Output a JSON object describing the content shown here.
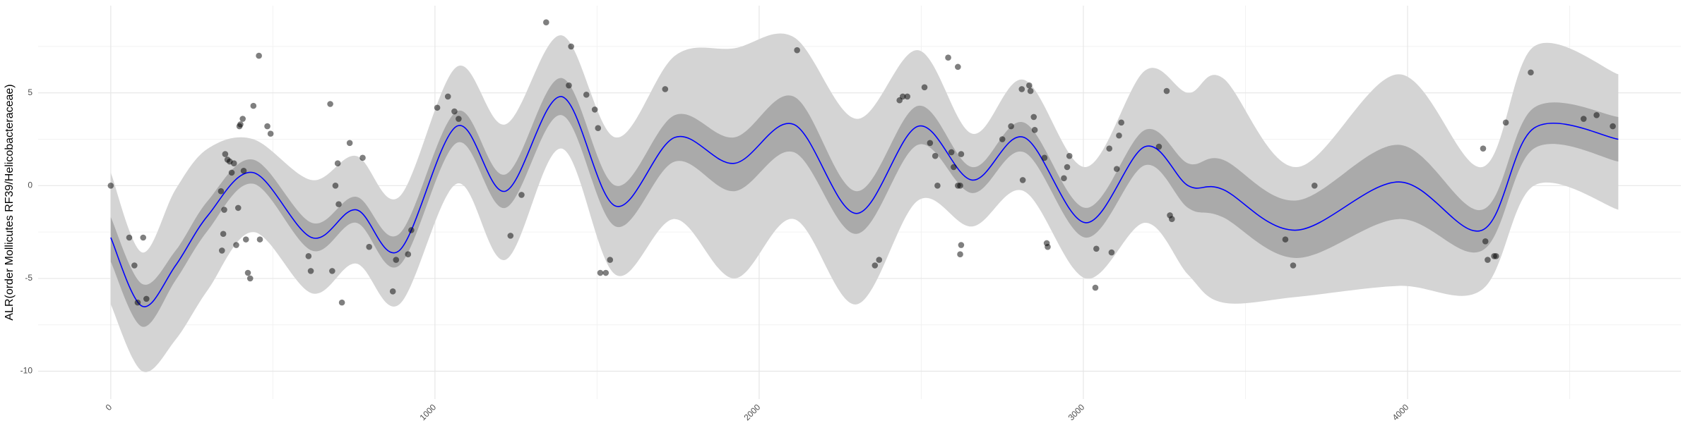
{
  "chart_data": {
    "type": "scatter",
    "y_label": "ALR(order Mollicutes RF39/Helicobacteraceae)",
    "xlim": [
      -224,
      4843
    ],
    "ylim": [
      -11.5,
      9.7
    ],
    "xticks": [
      0,
      1000,
      2000,
      3000,
      4000
    ],
    "yticks": [
      -10,
      -5,
      0,
      5
    ],
    "grid": true,
    "minor_grid": true,
    "points": {
      "color": "#000000",
      "x": [
        0,
        57,
        73,
        83,
        100,
        110,
        340,
        343,
        347,
        350,
        353,
        360,
        367,
        373,
        380,
        387,
        393,
        397,
        400,
        407,
        410,
        417,
        423,
        430,
        440,
        457,
        460,
        483,
        493,
        610,
        617,
        677,
        683,
        693,
        700,
        703,
        713,
        737,
        777,
        797,
        870,
        880,
        917,
        927,
        1007,
        1040,
        1060,
        1073,
        1233,
        1267,
        1343,
        1413,
        1420,
        1467,
        1493,
        1503,
        1510,
        1527,
        1540,
        1710,
        2117,
        2357,
        2370,
        2433,
        2443,
        2457,
        2510,
        2527,
        2543,
        2550,
        2583,
        2593,
        2600,
        2613,
        2613,
        2620,
        2623,
        2623,
        2620,
        2750,
        2777,
        2810,
        2813,
        2833,
        2837,
        2847,
        2850,
        2880,
        2887,
        2890,
        2950,
        2957,
        2940,
        3040,
        3037,
        3080,
        3087,
        3103,
        3110,
        3117,
        3233,
        3257,
        3267,
        3273,
        3623,
        3647,
        3713,
        4233,
        4240,
        4247,
        4267,
        4273,
        4303,
        4380,
        4543,
        4583,
        4633
      ],
      "y": [
        0.0,
        -2.8,
        -4.3,
        -6.3,
        -2.8,
        -6.1,
        -0.3,
        -3.5,
        -2.6,
        -1.3,
        1.7,
        1.4,
        1.3,
        0.7,
        1.2,
        -3.2,
        -1.2,
        3.2,
        3.3,
        3.6,
        0.8,
        -2.9,
        -4.7,
        -5.0,
        4.3,
        7.0,
        -2.9,
        3.2,
        2.8,
        -3.8,
        -4.6,
        4.4,
        -4.6,
        0.0,
        1.2,
        -1.0,
        -6.3,
        2.3,
        1.5,
        -3.3,
        -5.7,
        -4.0,
        -3.7,
        -2.4,
        4.2,
        4.8,
        4.0,
        3.6,
        -2.7,
        -0.5,
        8.8,
        5.4,
        7.5,
        4.9,
        4.1,
        3.1,
        -4.7,
        -4.7,
        -4.0,
        5.2,
        7.3,
        -4.3,
        -4.0,
        4.6,
        4.8,
        4.8,
        5.3,
        2.3,
        1.6,
        0.0,
        6.9,
        1.8,
        1.0,
        6.4,
        0.0,
        0.0,
        1.7,
        -3.2,
        -3.7,
        2.5,
        3.2,
        5.2,
        0.3,
        5.4,
        5.1,
        3.7,
        3.0,
        1.5,
        -3.1,
        -3.3,
        1.0,
        1.6,
        0.4,
        -3.4,
        -5.5,
        2.0,
        -3.6,
        0.9,
        2.7,
        3.4,
        2.1,
        5.1,
        -1.6,
        -1.8,
        -2.9,
        -4.3,
        0.0,
        2.0,
        -3.0,
        -4.0,
        -3.8,
        -3.8,
        3.4,
        6.1,
        3.6,
        3.8,
        3.2
      ]
    },
    "fit": {
      "color": "#0000ff",
      "x": [
        0,
        97,
        200,
        300,
        440,
        620,
        757,
        890,
        1067,
        1217,
        1390,
        1557,
        1740,
        1923,
        2107,
        2300,
        2490,
        2657,
        2817,
        3007,
        3190,
        3323,
        3430,
        3657,
        3973,
        4230,
        4390,
        4650
      ],
      "y": [
        -2.8,
        -6.5,
        -4.3,
        -1.6,
        0.7,
        -2.8,
        -1.3,
        -3.5,
        3.2,
        -0.3,
        4.8,
        -1.1,
        2.6,
        1.2,
        3.3,
        -1.5,
        3.2,
        0.3,
        2.6,
        -2.0,
        2.1,
        0.0,
        -0.2,
        -2.4,
        0.2,
        -2.4,
        3.1,
        2.5
      ]
    },
    "bands": [
      {
        "color": "#d4d4d4",
        "lower": [
          -6.4,
          -10.0,
          -8.3,
          -5.6,
          -2.5,
          -5.8,
          -4.2,
          -6.4,
          0.1,
          -4.0,
          2.0,
          -4.8,
          -1.8,
          -5.0,
          -1.8,
          -6.4,
          -0.8,
          -2.2,
          -0.3,
          -5.0,
          -2.0,
          -4.8,
          -6.3,
          -6.0,
          -5.4,
          -5.6,
          0.0,
          -1.3
        ],
        "upper": [
          0.7,
          -3.6,
          -0.2,
          2.0,
          2.5,
          0.3,
          1.6,
          -0.6,
          6.4,
          3.3,
          8.1,
          2.6,
          7.0,
          7.4,
          8.0,
          3.6,
          7.3,
          2.8,
          5.7,
          1.0,
          6.2,
          5.0,
          5.8,
          1.0,
          6.0,
          1.0,
          7.5,
          6.0
        ]
      },
      {
        "color": "#aaaaaa",
        "lower": [
          -4.1,
          -7.6,
          -5.1,
          -2.4,
          0.1,
          -3.5,
          -2.0,
          -4.3,
          2.3,
          -1.2,
          3.8,
          -2.2,
          1.3,
          -0.3,
          1.8,
          -2.6,
          2.2,
          -0.4,
          1.8,
          -2.8,
          1.1,
          -1.2,
          -1.7,
          -3.9,
          -1.8,
          -3.5,
          2.0,
          1.3
        ],
        "upper": [
          -1.7,
          -5.3,
          -3.5,
          -0.8,
          1.4,
          -2.0,
          -0.6,
          -2.6,
          4.0,
          0.6,
          5.8,
          0.0,
          3.8,
          2.6,
          4.8,
          -0.3,
          4.3,
          1.0,
          3.4,
          -1.2,
          3.0,
          1.2,
          1.4,
          -0.8,
          2.2,
          -1.3,
          4.2,
          3.7
        ]
      }
    ]
  }
}
